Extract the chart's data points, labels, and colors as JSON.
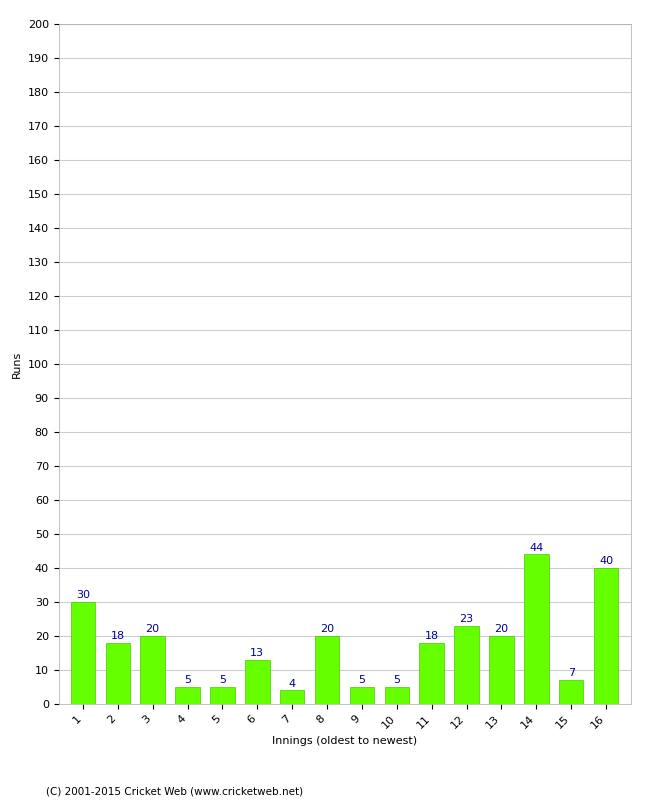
{
  "innings": [
    1,
    2,
    3,
    4,
    5,
    6,
    7,
    8,
    9,
    10,
    11,
    12,
    13,
    14,
    15,
    16
  ],
  "runs": [
    30,
    18,
    20,
    5,
    5,
    13,
    4,
    20,
    5,
    5,
    18,
    23,
    20,
    44,
    7,
    40
  ],
  "bar_color": "#66ff00",
  "bar_edge_color": "#44cc00",
  "label_color": "#000099",
  "xlabel": "Innings (oldest to newest)",
  "ylabel": "Runs",
  "ylim": [
    0,
    200
  ],
  "ytick_step": 10,
  "background_color": "#ffffff",
  "grid_color": "#cccccc",
  "footer": "(C) 2001-2015 Cricket Web (www.cricketweb.net)",
  "label_fontsize": 8,
  "axis_fontsize": 8,
  "xlabel_fontsize": 8
}
